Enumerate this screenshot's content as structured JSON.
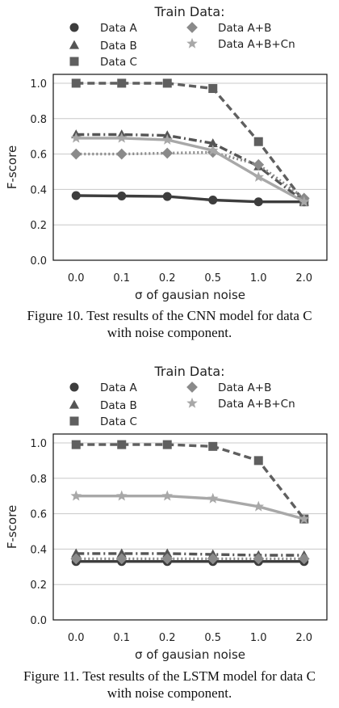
{
  "figures": [
    {
      "caption_line1": "Figure 10. Test results of the CNN model for data C",
      "caption_line2": "with noise component."
    },
    {
      "caption_line1": "Figure 11. Test results of the LSTM model for data C",
      "caption_line2": "with noise component."
    }
  ],
  "colors": {
    "data_a": "#3d3d3d",
    "data_b": "#555555",
    "data_c": "#5f5f5f",
    "data_ab": "#8a8a8a",
    "data_abcn": "#a8a8a8"
  },
  "chart_data": [
    {
      "type": "line",
      "legend_title": "Train Data:",
      "legend_position": "top, above plot",
      "xlabel": "σ of gausian noise",
      "ylabel": "F-score",
      "categories": [
        "0.0",
        "0.1",
        "0.2",
        "0.5",
        "1.0",
        "2.0"
      ],
      "ylim": [
        0.0,
        1.05
      ],
      "yticks": [
        "0.0",
        "0.2",
        "0.4",
        "0.6",
        "0.8",
        "1.0"
      ],
      "grid": "horizontal",
      "series": [
        {
          "name": "Data A",
          "marker": "circle",
          "line": "solid",
          "color_key": "data_a",
          "values": [
            0.365,
            0.363,
            0.36,
            0.34,
            0.33,
            0.33
          ]
        },
        {
          "name": "Data B",
          "marker": "triangle",
          "line": "dashdot",
          "color_key": "data_b",
          "values": [
            0.71,
            0.71,
            0.705,
            0.66,
            0.53,
            0.33
          ]
        },
        {
          "name": "Data C",
          "marker": "square",
          "line": "dashed",
          "color_key": "data_c",
          "values": [
            1.0,
            1.0,
            1.0,
            0.97,
            0.67,
            0.33
          ]
        },
        {
          "name": "Data A+B",
          "marker": "diamond",
          "line": "dotted",
          "color_key": "data_ab",
          "values": [
            0.6,
            0.6,
            0.605,
            0.61,
            0.54,
            0.35
          ]
        },
        {
          "name": "Data A+B+Cn",
          "marker": "star",
          "line": "solid",
          "color_key": "data_abcn",
          "values": [
            0.69,
            0.69,
            0.68,
            0.62,
            0.47,
            0.33
          ]
        }
      ]
    },
    {
      "type": "line",
      "legend_title": "Train Data:",
      "legend_position": "top, above plot",
      "xlabel": "σ of gausian noise",
      "ylabel": "F-score",
      "categories": [
        "0.0",
        "0.1",
        "0.2",
        "0.5",
        "1.0",
        "2.0"
      ],
      "ylim": [
        0.0,
        1.05
      ],
      "yticks": [
        "0.0",
        "0.2",
        "0.4",
        "0.6",
        "0.8",
        "1.0"
      ],
      "grid": "horizontal",
      "series": [
        {
          "name": "Data A",
          "marker": "circle",
          "line": "solid",
          "color_key": "data_a",
          "values": [
            0.33,
            0.33,
            0.33,
            0.33,
            0.33,
            0.33
          ]
        },
        {
          "name": "Data B",
          "marker": "triangle",
          "line": "dashdot",
          "color_key": "data_b",
          "values": [
            0.375,
            0.375,
            0.375,
            0.37,
            0.365,
            0.365
          ]
        },
        {
          "name": "Data C",
          "marker": "square",
          "line": "dashed",
          "color_key": "data_c",
          "values": [
            0.99,
            0.99,
            0.99,
            0.98,
            0.9,
            0.57
          ]
        },
        {
          "name": "Data A+B",
          "marker": "diamond",
          "line": "dotted",
          "color_key": "data_ab",
          "values": [
            0.345,
            0.345,
            0.345,
            0.345,
            0.345,
            0.345
          ]
        },
        {
          "name": "Data A+B+Cn",
          "marker": "star",
          "line": "solid",
          "color_key": "data_abcn",
          "values": [
            0.7,
            0.7,
            0.7,
            0.685,
            0.64,
            0.57
          ]
        }
      ]
    }
  ]
}
